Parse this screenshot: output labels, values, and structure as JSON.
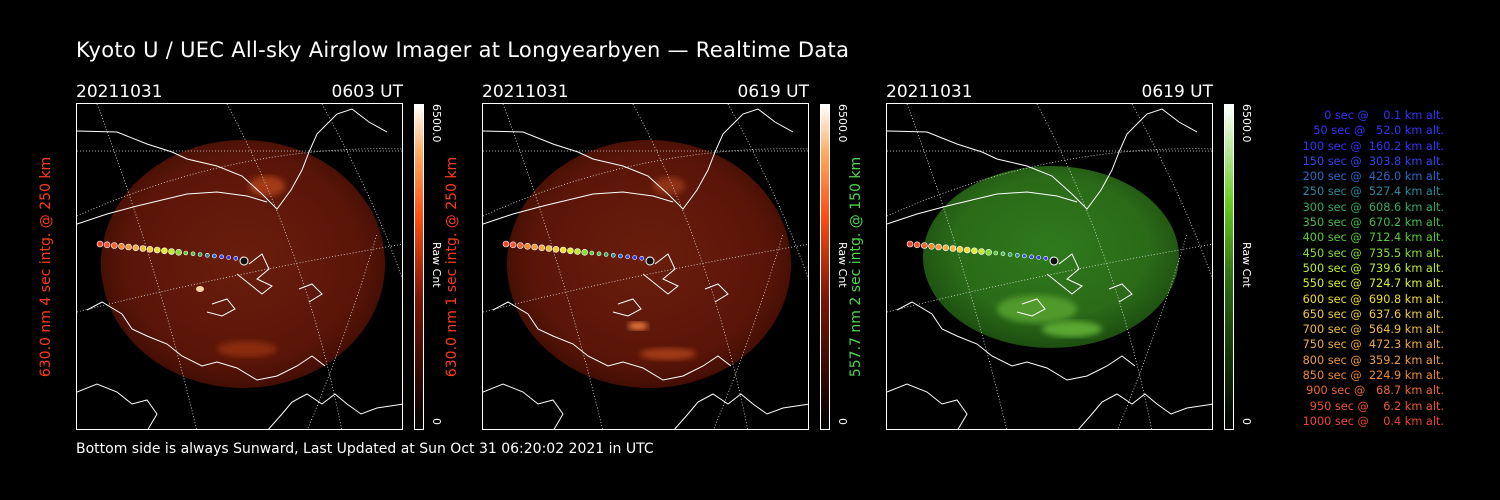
{
  "header": {
    "title": "Kyoto U / UEC All-sky Airglow Imager at Longyearbyen — Realtime Data"
  },
  "footer": {
    "text": "Bottom side is always Sunward, Last Updated at Sun Oct 31 06:20:02 2021 in UTC"
  },
  "colors": {
    "red_label": "#ff3a1a",
    "green_label": "#4cd64c"
  },
  "panels": [
    {
      "date": "20211031",
      "time": "0603 UT",
      "ylabel": "630.0 nm 4 sec intg. @ 250 km",
      "cbar_max": "6500.0",
      "cbar_unit": "Raw Cnt",
      "cbar_min": "0",
      "scheme": "red"
    },
    {
      "date": "20211031",
      "time": "0619 UT",
      "ylabel": "630.0 nm 1 sec intg. @ 250 km",
      "cbar_max": "6500.0",
      "cbar_unit": "Raw Cnt",
      "cbar_min": "0",
      "scheme": "red"
    },
    {
      "date": "20211031",
      "time": "0619 UT",
      "ylabel": "557.7 nm 2 sec intg. @ 150 km",
      "cbar_max": "6500.0",
      "cbar_unit": "Raw Cnt",
      "cbar_min": "0",
      "scheme": "green"
    }
  ],
  "legend": [
    {
      "text": "0 sec @    0.1 km alt.",
      "color": "#3333ff"
    },
    {
      "text": "50 sec @   52.0 km alt.",
      "color": "#3333ff"
    },
    {
      "text": "100 sec @  160.2 km alt.",
      "color": "#3333ff"
    },
    {
      "text": "150 sec @  303.8 km alt.",
      "color": "#3344ee"
    },
    {
      "text": "200 sec @  426.0 km alt.",
      "color": "#2a66cc"
    },
    {
      "text": "250 sec @  527.4 km alt.",
      "color": "#2a8899"
    },
    {
      "text": "300 sec @  608.6 km alt.",
      "color": "#33aa66"
    },
    {
      "text": "350 sec @  670.2 km alt.",
      "color": "#44bb44"
    },
    {
      "text": "400 sec @  712.4 km alt.",
      "color": "#55cc33"
    },
    {
      "text": "450 sec @  735.5 km alt.",
      "color": "#88dd33"
    },
    {
      "text": "500 sec @  739.6 km alt.",
      "color": "#bbee33"
    },
    {
      "text": "550 sec @  724.7 km alt.",
      "color": "#ddee33"
    },
    {
      "text": "600 sec @  690.8 km alt.",
      "color": "#eedd33"
    },
    {
      "text": "650 sec @  637.6 km alt.",
      "color": "#eecc44"
    },
    {
      "text": "700 sec @  564.9 km alt.",
      "color": "#eebb44"
    },
    {
      "text": "750 sec @  472.3 km alt.",
      "color": "#eeaa44"
    },
    {
      "text": "800 sec @  359.2 km alt.",
      "color": "#ee9944"
    },
    {
      "text": "850 sec @  224.9 km alt.",
      "color": "#ee8833"
    },
    {
      "text": "900 sec @   68.7 km alt.",
      "color": "#ee6633"
    },
    {
      "text": "950 sec @    6.2 km alt.",
      "color": "#ee5533"
    },
    {
      "text": "1000 sec @    0.4 km alt.",
      "color": "#ee4433"
    }
  ]
}
